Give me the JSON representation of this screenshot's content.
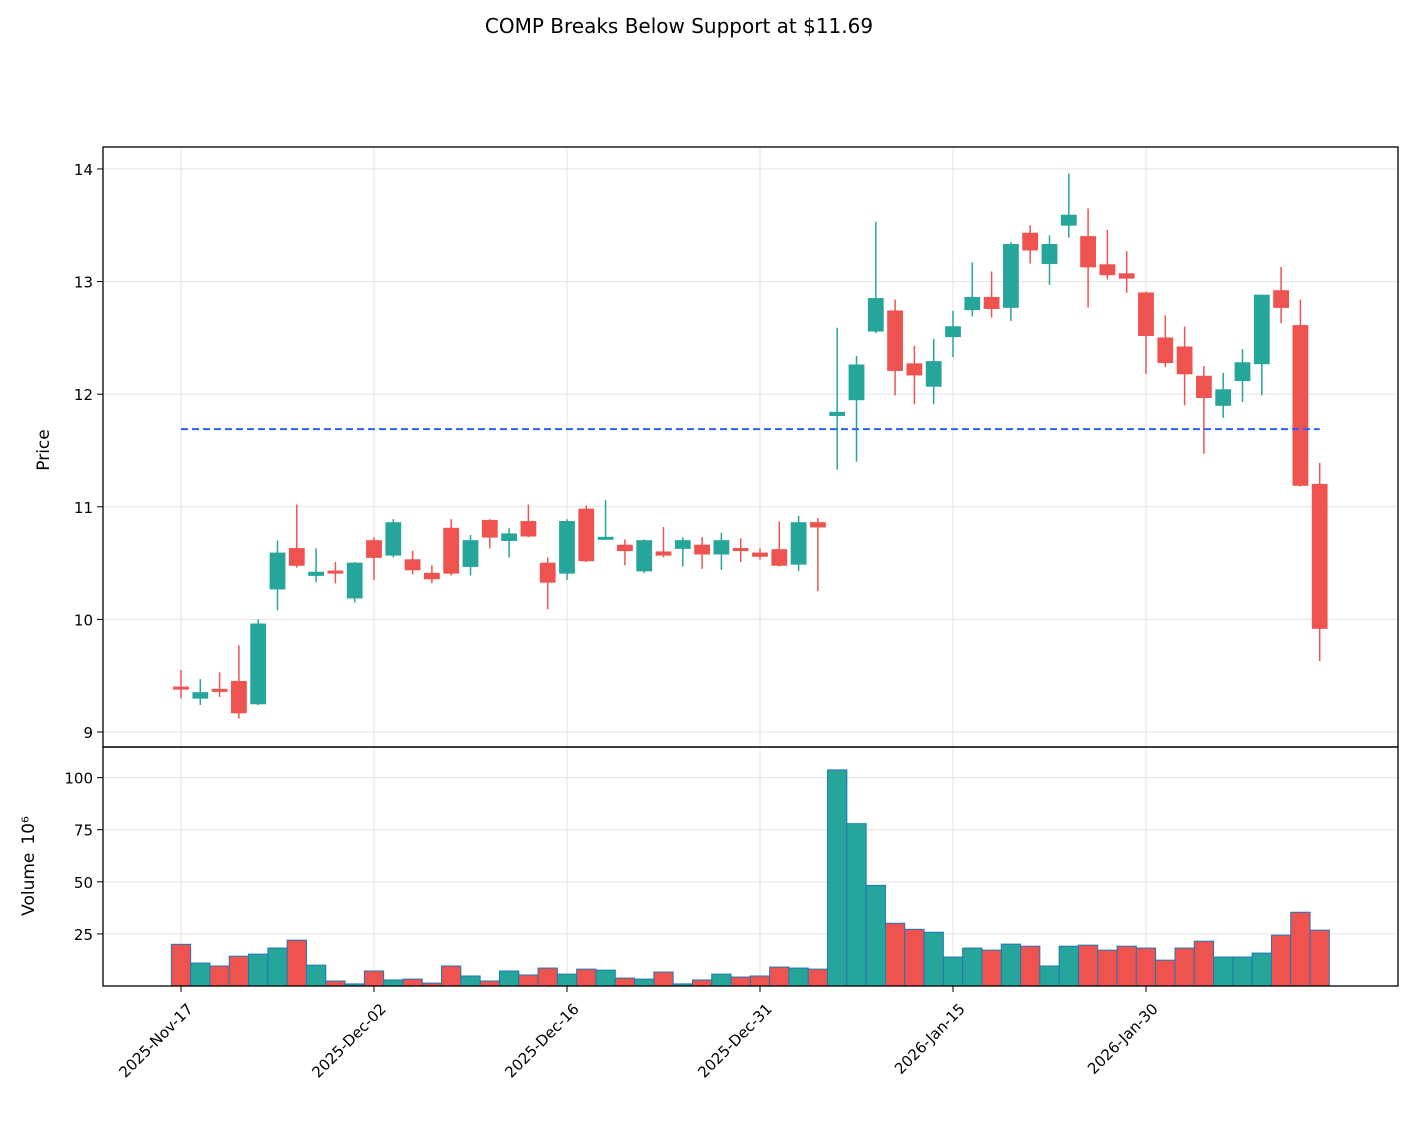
{
  "chart_data": {
    "type": "candlestick",
    "title": "COMP Breaks Below Support at $11.69",
    "ylabel": "Price",
    "y2label": "Volume",
    "y2offset": "10⁶",
    "categories": [
      "2025-Nov-17",
      "2025-Nov-18",
      "2025-Nov-19",
      "2025-Nov-20",
      "2025-Nov-21",
      "2025-Nov-24",
      "2025-Nov-25",
      "2025-Nov-26",
      "2025-Nov-28",
      "2025-Dec-01",
      "2025-Dec-02",
      "2025-Dec-03",
      "2025-Dec-04",
      "2025-Dec-05",
      "2025-Dec-08",
      "2025-Dec-09",
      "2025-Dec-10",
      "2025-Dec-11",
      "2025-Dec-12",
      "2025-Dec-15",
      "2025-Dec-16",
      "2025-Dec-17",
      "2025-Dec-18",
      "2025-Dec-19",
      "2025-Dec-22",
      "2025-Dec-23",
      "2025-Dec-24",
      "2025-Dec-26",
      "2025-Dec-29",
      "2025-Dec-30",
      "2025-Dec-31",
      "2026-Jan-02",
      "2026-Jan-05",
      "2026-Jan-06",
      "2026-Jan-07",
      "2026-Jan-08",
      "2026-Jan-09",
      "2026-Jan-12",
      "2026-Jan-13",
      "2026-Jan-14",
      "2026-Jan-15",
      "2026-Jan-16",
      "2026-Jan-20",
      "2026-Jan-21",
      "2026-Jan-22",
      "2026-Jan-23",
      "2026-Jan-26",
      "2026-Jan-27",
      "2026-Jan-28",
      "2026-Jan-29",
      "2026-Jan-30",
      "2026-Feb-02",
      "2026-Feb-03",
      "2026-Feb-04",
      "2026-Feb-05",
      "2026-Feb-06",
      "2026-Feb-09",
      "2026-Feb-10",
      "2026-Feb-11",
      "2026-Feb-12"
    ],
    "open": [
      9.4,
      9.3,
      9.38,
      9.45,
      9.25,
      10.27,
      10.63,
      10.39,
      10.43,
      10.19,
      10.7,
      10.57,
      10.53,
      10.41,
      10.81,
      10.47,
      10.88,
      10.7,
      10.87,
      10.5,
      10.41,
      10.98,
      10.71,
      10.66,
      10.43,
      10.6,
      10.63,
      10.66,
      10.58,
      10.63,
      10.59,
      10.62,
      10.49,
      10.86,
      11.81,
      11.95,
      12.56,
      12.74,
      12.27,
      12.07,
      12.51,
      12.75,
      12.86,
      12.77,
      13.43,
      13.16,
      13.5,
      13.4,
      13.15,
      13.07,
      12.9,
      12.5,
      12.42,
      12.16,
      11.9,
      12.12,
      12.27,
      12.92,
      12.61,
      11.2
    ],
    "high": [
      9.55,
      9.47,
      9.53,
      9.77,
      10.0,
      10.7,
      11.02,
      10.63,
      10.51,
      10.51,
      10.73,
      10.89,
      10.61,
      10.48,
      10.89,
      10.75,
      10.89,
      10.81,
      11.02,
      10.55,
      10.89,
      11.01,
      11.06,
      10.71,
      10.71,
      10.82,
      10.73,
      10.73,
      10.77,
      10.72,
      10.63,
      10.87,
      10.92,
      10.9,
      12.59,
      12.34,
      13.53,
      12.84,
      12.43,
      12.49,
      12.74,
      13.17,
      13.09,
      13.35,
      13.5,
      13.41,
      13.96,
      13.65,
      13.46,
      13.27,
      12.91,
      12.7,
      12.6,
      12.25,
      12.19,
      12.4,
      12.88,
      13.13,
      12.84,
      11.39
    ],
    "low": [
      9.3,
      9.24,
      9.31,
      9.12,
      9.24,
      10.08,
      10.46,
      10.33,
      10.32,
      10.15,
      10.35,
      10.55,
      10.4,
      10.32,
      10.39,
      10.39,
      10.63,
      10.55,
      10.73,
      10.09,
      10.35,
      10.51,
      10.71,
      10.48,
      10.41,
      10.55,
      10.47,
      10.45,
      10.44,
      10.51,
      10.53,
      10.47,
      10.43,
      10.25,
      11.33,
      11.4,
      12.54,
      11.99,
      11.91,
      11.91,
      12.33,
      12.69,
      12.68,
      12.65,
      13.16,
      12.97,
      13.39,
      12.77,
      13.02,
      12.9,
      12.18,
      12.24,
      11.9,
      11.47,
      11.79,
      11.93,
      11.99,
      12.63,
      11.18,
      9.63
    ],
    "close": [
      9.38,
      9.35,
      9.36,
      9.17,
      9.96,
      10.59,
      10.48,
      10.42,
      10.41,
      10.5,
      10.55,
      10.86,
      10.44,
      10.36,
      10.41,
      10.7,
      10.73,
      10.76,
      10.74,
      10.33,
      10.87,
      10.52,
      10.73,
      10.61,
      10.7,
      10.57,
      10.7,
      10.58,
      10.7,
      10.61,
      10.56,
      10.48,
      10.86,
      10.82,
      11.84,
      12.26,
      12.85,
      12.21,
      12.17,
      12.29,
      12.6,
      12.86,
      12.76,
      13.33,
      13.28,
      13.33,
      13.59,
      13.13,
      13.06,
      13.03,
      12.52,
      12.28,
      12.18,
      11.97,
      12.04,
      12.28,
      12.88,
      12.77,
      11.19,
      9.92
    ],
    "volume": [
      20,
      11,
      9.6,
      14.3,
      15.3,
      18.2,
      22,
      10,
      2.4,
      1,
      7.2,
      2.9,
      3.3,
      1.4,
      9.6,
      4.8,
      2.4,
      7.2,
      5.3,
      8.6,
      5.7,
      8.1,
      7.6,
      3.8,
      3.3,
      6.7,
      1,
      2.9,
      5.7,
      4.3,
      4.8,
      9.1,
      8.6,
      8.1,
      103.7,
      77.9,
      48.3,
      30.1,
      27.2,
      25.8,
      13.9,
      18.2,
      17.2,
      20.1,
      19.1,
      9.6,
      19.1,
      19.6,
      17.2,
      19.1,
      18.2,
      12.4,
      18.2,
      21.5,
      13.9,
      13.9,
      15.8,
      24.4,
      35.4,
      26.8
    ],
    "up_color": "#26a69a",
    "down_color": "#ef5350",
    "volume_edge_color": "#1f77b4",
    "ylim": [
      8.867,
      14.195
    ],
    "yticks": [
      9,
      10,
      11,
      12,
      13,
      14
    ],
    "y2lim": [
      0,
      114.7
    ],
    "y2ticks": [
      25,
      50,
      75,
      100
    ],
    "xticks": [
      "2025-Nov-17",
      "2025-Dec-02",
      "2025-Dec-16",
      "2025-Dec-31",
      "2026-Jan-15",
      "2026-Jan-30"
    ],
    "support": {
      "value": 11.69,
      "color": "#2962ff"
    },
    "grid": true
  }
}
